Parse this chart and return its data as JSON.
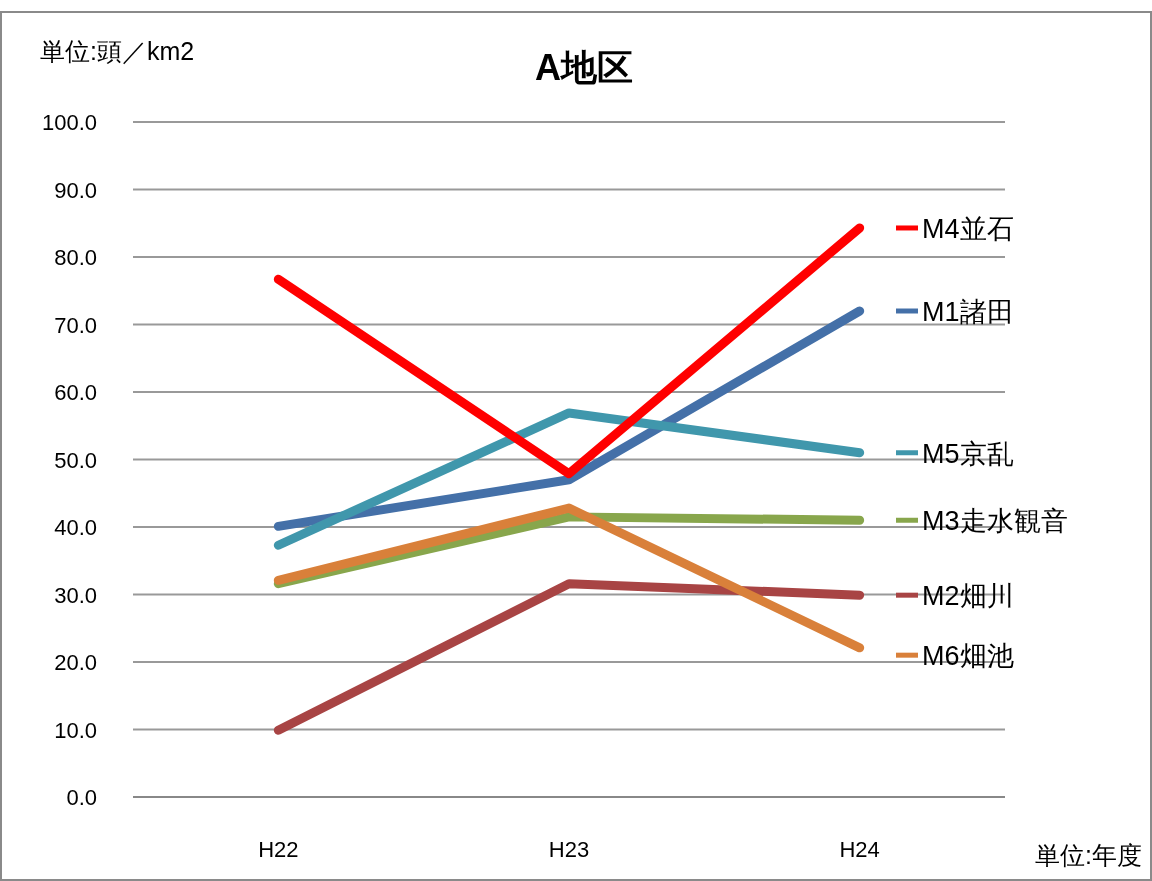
{
  "chart_data": {
    "type": "line",
    "title": "A地区",
    "categories": [
      "H22",
      "H23",
      "H24"
    ],
    "series": [
      {
        "name": "M1諸田",
        "color": "#4470a8",
        "values": [
          40.1,
          47.0,
          72.0
        ]
      },
      {
        "name": "M5京乱",
        "color": "#4097ac",
        "values": [
          37.3,
          56.9,
          51.0
        ]
      },
      {
        "name": "M3走水観音",
        "color": "#88a64c",
        "values": [
          31.6,
          41.5,
          41.0
        ]
      },
      {
        "name": "M2畑川",
        "color": "#a84444",
        "values": [
          9.9,
          31.6,
          29.9
        ]
      },
      {
        "name": "M6畑池",
        "color": "#d9803a",
        "values": [
          32.1,
          42.8,
          22.1
        ]
      },
      {
        "name": "M4並石",
        "color": "#ff0000",
        "values": [
          76.7,
          47.9,
          84.3
        ]
      }
    ],
    "ylim": [
      0,
      100
    ],
    "yticks": [
      {
        "value": 0,
        "label": "0.0"
      },
      {
        "value": 10,
        "label": "10.0"
      },
      {
        "value": 20,
        "label": "20.0"
      },
      {
        "value": 30,
        "label": "30.0"
      },
      {
        "value": 40,
        "label": "40.0"
      },
      {
        "value": 50,
        "label": "50.0"
      },
      {
        "value": 60,
        "label": "60.0"
      },
      {
        "value": 70,
        "label": "70.0"
      },
      {
        "value": 80,
        "label": "80.0"
      },
      {
        "value": 90,
        "label": "90.0"
      },
      {
        "value": 100,
        "label": "100.0"
      }
    ],
    "grid": "y",
    "legend": "right",
    "marker": "none",
    "line_style": "solid",
    "annotations": [
      "単位:頭／km2",
      "単位:年度"
    ]
  }
}
